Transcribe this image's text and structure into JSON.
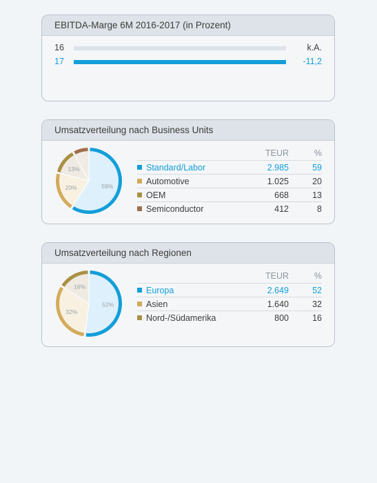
{
  "ebitda": {
    "title": "EBITDA-Marge 6M 2016-2017 (in Prozent)",
    "rows": [
      {
        "year": "16",
        "value": "k.A.",
        "fill": 0,
        "color": "#3c3c3c"
      },
      {
        "year": "17",
        "value": "-11,2",
        "fill": 1,
        "color": "#139ed9"
      }
    ]
  },
  "business": {
    "title": "Umsatzverteilung nach Business Units",
    "col_teur": "TEUR",
    "col_pct": "%",
    "rows": [
      {
        "label": "Standard/Labor",
        "teur": "2.985",
        "pct": "59",
        "color": "#139ed9"
      },
      {
        "label": "Automotive",
        "teur": "1.025",
        "pct": "20",
        "color": "#d3ab5c"
      },
      {
        "label": "OEM",
        "teur": "668",
        "pct": "13",
        "color": "#a99044"
      },
      {
        "label": "Semiconductor",
        "teur": "412",
        "pct": "8",
        "color": "#a06f4b"
      }
    ]
  },
  "regions": {
    "title": "Umsatzverteilung nach Regionen",
    "col_teur": "TEUR",
    "col_pct": "%",
    "rows": [
      {
        "label": "Europa",
        "teur": "2.649",
        "pct": "52",
        "color": "#139ed9"
      },
      {
        "label": "Asien",
        "teur": "1.640",
        "pct": "32",
        "color": "#d3ab5c"
      },
      {
        "label": "Nord-/Südamerika",
        "teur": "800",
        "pct": "16",
        "color": "#a99044"
      }
    ]
  },
  "chart_data": [
    {
      "type": "bar",
      "title": "EBITDA-Marge 6M 2016-2017 (in Prozent)",
      "categories": [
        "16",
        "17"
      ],
      "values": [
        null,
        -11.2
      ],
      "value_labels": [
        "k.A.",
        "-11,2"
      ]
    },
    {
      "type": "pie",
      "title": "Umsatzverteilung nach Business Units",
      "categories": [
        "Standard/Labor",
        "Automotive",
        "OEM",
        "Semiconductor"
      ],
      "values": [
        59,
        20,
        13,
        8
      ],
      "slice_labels": [
        "59%",
        "20%",
        "13%",
        ""
      ],
      "teur": [
        2985,
        1025,
        668,
        412
      ]
    },
    {
      "type": "pie",
      "title": "Umsatzverteilung nach Regionen",
      "categories": [
        "Europa",
        "Asien",
        "Nord-/Südamerika"
      ],
      "values": [
        52,
        32,
        16
      ],
      "slice_labels": [
        "52%",
        "32%",
        "16%"
      ],
      "teur": [
        2649,
        1640,
        800
      ]
    }
  ]
}
